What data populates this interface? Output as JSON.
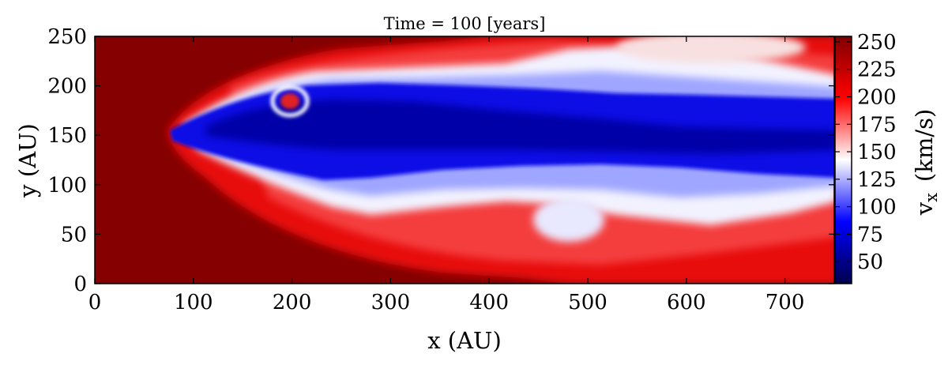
{
  "chart_data": {
    "type": "heatmap",
    "title": "Time = 100 [years]",
    "xlabel": "x  (AU)",
    "ylabel": "y  (AU)",
    "xlim": [
      0,
      750
    ],
    "ylim": [
      0,
      250
    ],
    "xticks": [
      0,
      100,
      200,
      300,
      400,
      500,
      600,
      700
    ],
    "yticks": [
      0,
      50,
      100,
      150,
      200,
      250
    ],
    "colorbar": {
      "label": "v_x  (km/s)",
      "label_symbol": "v",
      "label_subscript": "x",
      "label_units": "(km/s)",
      "range": [
        30,
        255
      ],
      "ticks": [
        50,
        75,
        100,
        125,
        150,
        175,
        200,
        225,
        250
      ],
      "colormap": "seismic"
    },
    "field_description": "Jet moving in +x: fast ambient gas (~250 km/s, dark red) on the left; slower blue core (~40-80 km/s) centered near y=150 extending from x~80 to x=750, widening downstream; white/light-blue mixing layers (~120-150 km/s) along edges; red envelope (~200 km/s) around the jet."
  }
}
